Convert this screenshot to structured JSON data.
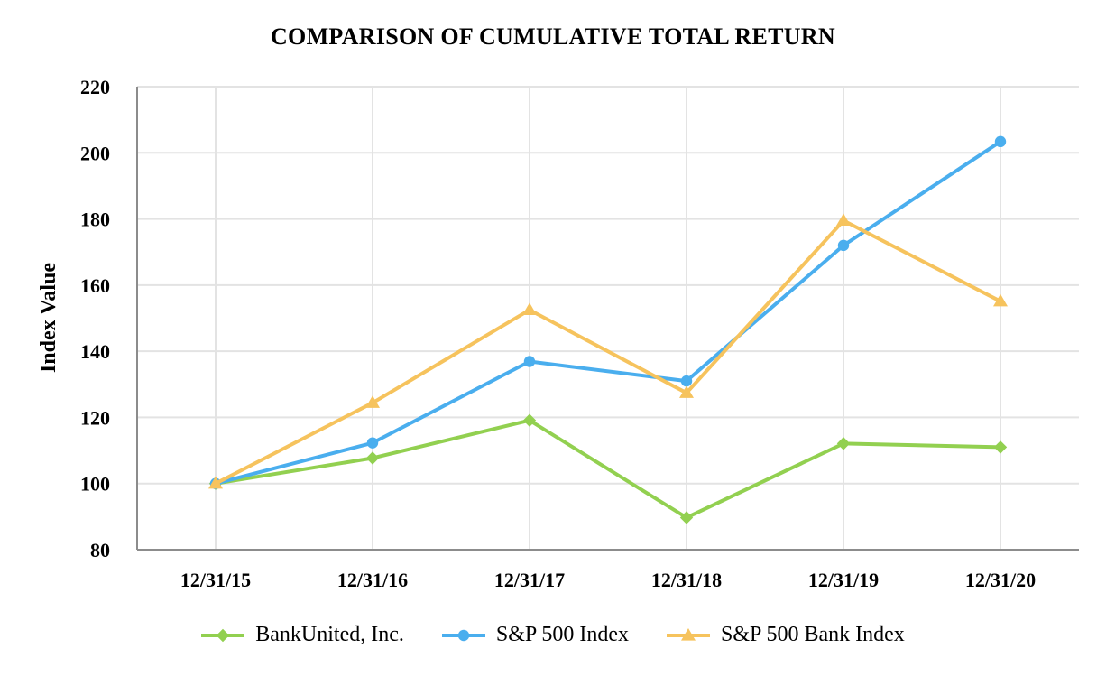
{
  "chart_data": {
    "type": "line",
    "title": "COMPARISON OF CUMULATIVE TOTAL RETURN",
    "xlabel": "",
    "ylabel": "Index Value",
    "categories": [
      "12/31/15",
      "12/31/16",
      "12/31/17",
      "12/31/18",
      "12/31/19",
      "12/31/20"
    ],
    "ylim": [
      80,
      220
    ],
    "yticks": [
      80,
      100,
      120,
      140,
      160,
      180,
      200,
      220
    ],
    "grid": true,
    "legend_position": "bottom",
    "series": [
      {
        "name": "BankUnited, Inc.",
        "color": "#92d050",
        "marker": "diamond",
        "values": [
          100,
          107.7,
          119.1,
          89.7,
          112.1,
          111.0
        ]
      },
      {
        "name": "S&P 500 Index",
        "color": "#4aaeee",
        "marker": "circle",
        "values": [
          100,
          112.3,
          136.9,
          131.0,
          172.0,
          203.4
        ]
      },
      {
        "name": "S&P 500 Bank Index",
        "color": "#f6c35d",
        "marker": "triangle",
        "values": [
          100,
          124.4,
          152.5,
          127.4,
          179.5,
          155.1
        ]
      }
    ]
  }
}
